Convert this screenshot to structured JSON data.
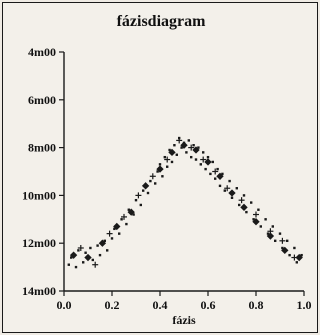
{
  "chart_data": {
    "type": "scatter",
    "title": "fázisdiagram",
    "xlabel": "fázis",
    "ylabel": "",
    "xlim": [
      0.0,
      1.0
    ],
    "ylim": [
      14.0,
      4.0
    ],
    "y_inverted": true,
    "x_ticks": [
      "0.0",
      "0.2",
      "0.4",
      "0.6",
      "0.8",
      "1.0"
    ],
    "y_ticks": [
      "4m00",
      "6m00",
      "8m00",
      "10m00",
      "12m00",
      "14m00"
    ],
    "series": [
      {
        "marker": "dot",
        "points": [
          [
            0.02,
            12.9
          ],
          [
            0.03,
            12.6
          ],
          [
            0.05,
            13.0
          ],
          [
            0.06,
            12.3
          ],
          [
            0.08,
            12.8
          ],
          [
            0.09,
            12.4
          ],
          [
            0.11,
            12.2
          ],
          [
            0.12,
            12.7
          ],
          [
            0.14,
            12.1
          ],
          [
            0.15,
            12.5
          ],
          [
            0.17,
            11.9
          ],
          [
            0.18,
            12.3
          ],
          [
            0.2,
            11.8
          ],
          [
            0.21,
            11.4
          ],
          [
            0.23,
            11.6
          ],
          [
            0.24,
            11.0
          ],
          [
            0.26,
            11.2
          ],
          [
            0.27,
            10.6
          ],
          [
            0.29,
            10.8
          ],
          [
            0.3,
            10.2
          ],
          [
            0.32,
            10.4
          ],
          [
            0.33,
            9.8
          ],
          [
            0.35,
            9.9
          ],
          [
            0.36,
            9.4
          ],
          [
            0.38,
            9.5
          ],
          [
            0.39,
            9.0
          ],
          [
            0.4,
            8.7
          ],
          [
            0.41,
            9.2
          ],
          [
            0.42,
            8.4
          ],
          [
            0.43,
            8.8
          ],
          [
            0.44,
            8.1
          ],
          [
            0.45,
            8.6
          ],
          [
            0.46,
            7.9
          ],
          [
            0.47,
            8.3
          ],
          [
            0.48,
            7.6
          ],
          [
            0.49,
            8.0
          ],
          [
            0.5,
            7.8
          ],
          [
            0.51,
            8.2
          ],
          [
            0.52,
            7.7
          ],
          [
            0.53,
            8.4
          ],
          [
            0.54,
            7.9
          ],
          [
            0.55,
            8.5
          ],
          [
            0.56,
            8.0
          ],
          [
            0.57,
            8.7
          ],
          [
            0.58,
            8.2
          ],
          [
            0.59,
            8.9
          ],
          [
            0.6,
            8.4
          ],
          [
            0.61,
            9.1
          ],
          [
            0.62,
            8.6
          ],
          [
            0.63,
            9.3
          ],
          [
            0.64,
            8.9
          ],
          [
            0.65,
            9.6
          ],
          [
            0.66,
            9.1
          ],
          [
            0.67,
            9.8
          ],
          [
            0.69,
            9.4
          ],
          [
            0.7,
            10.1
          ],
          [
            0.72,
            9.7
          ],
          [
            0.73,
            10.4
          ],
          [
            0.75,
            10.0
          ],
          [
            0.76,
            10.7
          ],
          [
            0.78,
            10.3
          ],
          [
            0.79,
            11.0
          ],
          [
            0.81,
            10.6
          ],
          [
            0.82,
            11.3
          ],
          [
            0.84,
            11.0
          ],
          [
            0.85,
            11.6
          ],
          [
            0.87,
            11.3
          ],
          [
            0.88,
            11.9
          ],
          [
            0.9,
            11.6
          ],
          [
            0.91,
            12.2
          ],
          [
            0.93,
            11.9
          ],
          [
            0.94,
            12.5
          ],
          [
            0.96,
            12.2
          ],
          [
            0.97,
            12.8
          ],
          [
            0.99,
            12.5
          ]
        ]
      },
      {
        "marker": "filled-square",
        "points": [
          [
            0.04,
            12.5
          ],
          [
            0.1,
            12.6
          ],
          [
            0.16,
            12.0
          ],
          [
            0.22,
            11.3
          ],
          [
            0.28,
            10.7
          ],
          [
            0.34,
            9.6
          ],
          [
            0.4,
            8.9
          ],
          [
            0.45,
            8.2
          ],
          [
            0.5,
            7.9
          ],
          [
            0.55,
            8.1
          ],
          [
            0.6,
            8.6
          ],
          [
            0.65,
            9.2
          ],
          [
            0.7,
            9.9
          ],
          [
            0.75,
            10.5
          ],
          [
            0.8,
            11.1
          ],
          [
            0.86,
            11.7
          ],
          [
            0.92,
            12.3
          ],
          [
            0.98,
            12.6
          ]
        ]
      },
      {
        "marker": "plus",
        "points": [
          [
            0.07,
            12.2
          ],
          [
            0.13,
            12.9
          ],
          [
            0.19,
            11.6
          ],
          [
            0.25,
            10.9
          ],
          [
            0.31,
            10.0
          ],
          [
            0.37,
            9.2
          ],
          [
            0.43,
            8.5
          ],
          [
            0.48,
            7.7
          ],
          [
            0.53,
            8.0
          ],
          [
            0.58,
            8.5
          ],
          [
            0.63,
            9.0
          ],
          [
            0.68,
            9.7
          ],
          [
            0.74,
            10.2
          ],
          [
            0.8,
            10.8
          ],
          [
            0.86,
            11.5
          ],
          [
            0.91,
            11.9
          ],
          [
            0.96,
            12.6
          ]
        ]
      }
    ],
    "grid": false,
    "legend": "none"
  },
  "colors": {
    "page": "#efebe4",
    "frame": "#1a1a1a",
    "marks": "#1a1a1a",
    "bleed_text": "#cfc9c0"
  }
}
